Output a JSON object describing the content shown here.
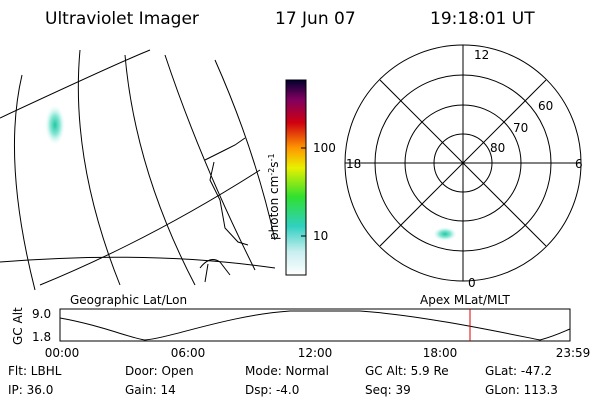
{
  "header": {
    "instrument": "Ultraviolet Imager",
    "date": "17 Jun 07",
    "time": "19:18:01 UT"
  },
  "colorbar": {
    "label_parts": [
      "photon cm",
      "-2",
      "s",
      "-1"
    ],
    "ticks": [
      "100",
      "10"
    ]
  },
  "polar": {
    "mlt_labels": [
      "12",
      "18",
      "6",
      "0"
    ],
    "mlat_labels": [
      "60",
      "70",
      "80"
    ]
  },
  "timeline": {
    "left_title": "Geographic Lat/Lon",
    "right_title": "Apex MLat/MLT",
    "y_label": "GC Alt",
    "y_ticks": [
      "9.0",
      "1.8"
    ],
    "x_ticks": [
      "00:00",
      "06:00",
      "12:00",
      "18:00",
      "23:59"
    ]
  },
  "footer": {
    "rows": [
      [
        "Flt: LBHL",
        "Door: Open",
        "Mode: Normal",
        "GC Alt: 5.9 Re",
        "GLat: -47.2"
      ],
      [
        "IP: 36.0",
        "Gain: 14",
        "Dsp:    -4.0",
        "Seq: 39",
        "GLon: 113.3"
      ]
    ]
  }
}
